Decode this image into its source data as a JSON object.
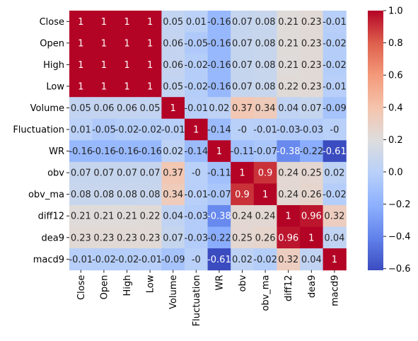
{
  "chart_data": {
    "type": "heatmap",
    "title": "",
    "xlabel": "",
    "ylabel": "",
    "labels": [
      "Close",
      "Open",
      "High",
      "Low",
      "Volume",
      "Fluctuation",
      "WR",
      "obv",
      "obv_ma",
      "diff12",
      "dea9",
      "macd9"
    ],
    "matrix": [
      [
        1,
        1,
        1,
        1,
        0.05,
        0.01,
        -0.16,
        0.07,
        0.08,
        0.21,
        0.23,
        -0.01
      ],
      [
        1,
        1,
        1,
        1,
        0.06,
        -0.05,
        -0.16,
        0.07,
        0.08,
        0.21,
        0.23,
        -0.02
      ],
      [
        1,
        1,
        1,
        1,
        0.06,
        -0.02,
        -0.16,
        0.07,
        0.08,
        0.21,
        0.23,
        -0.02
      ],
      [
        1,
        1,
        1,
        1,
        0.05,
        -0.02,
        -0.16,
        0.07,
        0.08,
        0.22,
        0.23,
        -0.01
      ],
      [
        0.05,
        0.06,
        0.06,
        0.05,
        1,
        -0.01,
        0.02,
        0.37,
        0.34,
        0.04,
        0.07,
        -0.09
      ],
      [
        0.01,
        -0.05,
        -0.02,
        -0.02,
        -0.01,
        1,
        -0.14,
        0,
        -0.01,
        -0.03,
        -0.03,
        0
      ],
      [
        -0.16,
        -0.16,
        -0.16,
        -0.16,
        0.02,
        -0.14,
        1,
        -0.11,
        -0.07,
        -0.38,
        -0.22,
        -0.61
      ],
      [
        0.07,
        0.07,
        0.07,
        0.07,
        0.37,
        0,
        -0.11,
        1,
        0.9,
        0.24,
        0.25,
        0.02
      ],
      [
        0.08,
        0.08,
        0.08,
        0.08,
        0.34,
        -0.01,
        -0.07,
        0.9,
        1,
        0.24,
        0.26,
        -0.02
      ],
      [
        0.21,
        0.21,
        0.21,
        0.22,
        0.04,
        -0.03,
        -0.38,
        0.24,
        0.24,
        1,
        0.96,
        0.32
      ],
      [
        0.23,
        0.23,
        0.23,
        0.23,
        0.07,
        -0.03,
        -0.22,
        0.25,
        0.26,
        0.96,
        1,
        0.04
      ],
      [
        -0.01,
        -0.02,
        -0.02,
        -0.01,
        -0.09,
        0,
        -0.61,
        0.02,
        -0.02,
        0.32,
        0.04,
        1
      ]
    ],
    "colormap": "coolwarm",
    "colorbar": {
      "range": [
        -0.61,
        1
      ],
      "ticks": [
        1.0,
        0.8,
        0.6,
        0.4,
        0.2,
        0.0,
        -0.2,
        -0.4,
        -0.6
      ],
      "tick_labels": [
        "1.0",
        "0.8",
        "0.6",
        "0.4",
        "0.2",
        "0.0",
        "−0.2",
        "−0.4",
        "−0.6"
      ]
    },
    "annotations": true,
    "grid": false
  }
}
